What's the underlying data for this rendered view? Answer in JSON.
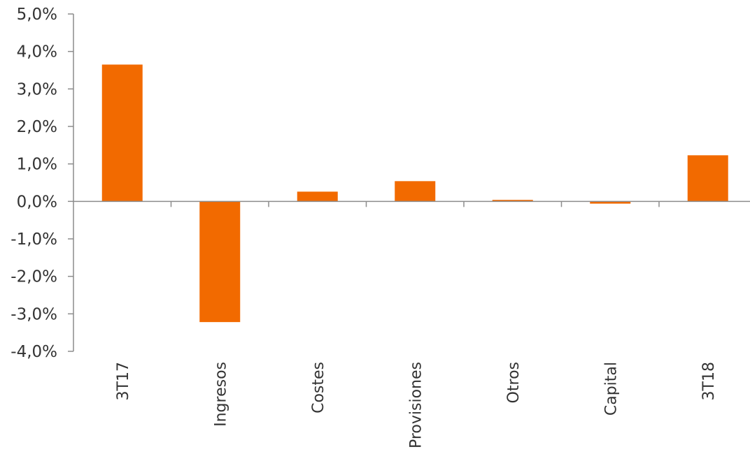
{
  "chart_data": {
    "type": "bar",
    "title": "",
    "xlabel": "",
    "ylabel": "",
    "categories": [
      "3T17",
      "Ingresos",
      "Costes",
      "Provisiones",
      "Otros",
      "Capital",
      "3T18"
    ],
    "values": [
      3.65,
      -3.22,
      0.26,
      0.54,
      0.04,
      -0.06,
      1.23
    ],
    "ylim": [
      -4.0,
      5.0
    ],
    "yticks": [
      5.0,
      4.0,
      3.0,
      2.0,
      1.0,
      0.0,
      -1.0,
      -2.0,
      -3.0,
      -4.0
    ],
    "ytick_labels": [
      "5,0%",
      "4,0%",
      "3,0%",
      "2,0%",
      "1,0%",
      "0,0%",
      "-1,0%",
      "-2,0%",
      "-3,0%",
      "-4,0%"
    ],
    "bar_color": "#F26A00",
    "axis_color": "#8C8C8C",
    "grid": false,
    "legend": "none"
  }
}
